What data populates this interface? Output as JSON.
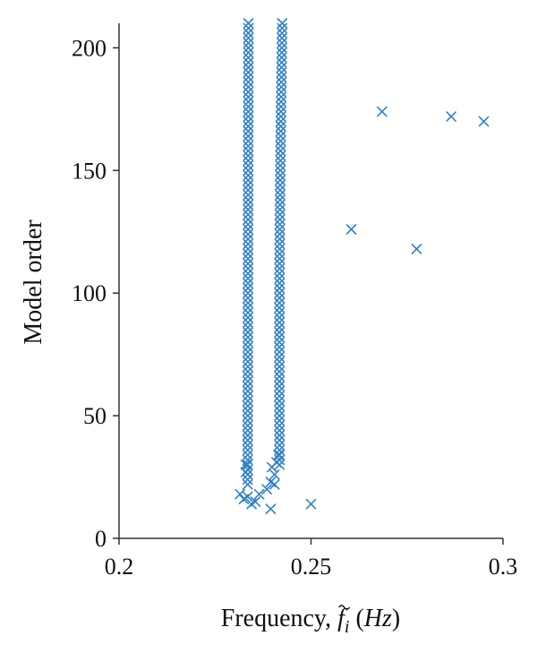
{
  "chart_data": {
    "type": "scatter",
    "title": "",
    "xlabel": "Frequency, f̃ᵢ (Hz)",
    "xlabel_parts": {
      "prefix": "Frequency, ",
      "symbol": "f",
      "subscript": "i",
      "unit": "Hz"
    },
    "ylabel": "Model order",
    "xlim": [
      0.2,
      0.3
    ],
    "ylim": [
      0,
      210
    ],
    "xticks": [
      0.2,
      0.25,
      0.3
    ],
    "xtick_labels": [
      "0.2",
      "0.25",
      "0.3"
    ],
    "yticks": [
      0,
      50,
      100,
      150,
      200
    ],
    "ytick_labels": [
      "0",
      "50",
      "100",
      "150",
      "200"
    ],
    "grid": false,
    "marker": "x",
    "marker_color": "#2f80c8",
    "columns": [
      {
        "y_from": 22,
        "y_to": 210,
        "y_step": 2,
        "x_start": 0.2335,
        "x_end": 0.2337
      },
      {
        "y_from": 30,
        "y_to": 210,
        "y_step": 2,
        "x_start": 0.2418,
        "x_end": 0.2425,
        "x_bulge": 0.0003
      }
    ],
    "points": [
      {
        "x": 0.2315,
        "y": 18
      },
      {
        "x": 0.2325,
        "y": 16
      },
      {
        "x": 0.2335,
        "y": 17
      },
      {
        "x": 0.2345,
        "y": 14
      },
      {
        "x": 0.2355,
        "y": 15
      },
      {
        "x": 0.2365,
        "y": 18
      },
      {
        "x": 0.2385,
        "y": 20
      },
      {
        "x": 0.2395,
        "y": 12
      },
      {
        "x": 0.2395,
        "y": 23
      },
      {
        "x": 0.2405,
        "y": 22
      },
      {
        "x": 0.2405,
        "y": 26
      },
      {
        "x": 0.241,
        "y": 31
      },
      {
        "x": 0.2398,
        "y": 29
      },
      {
        "x": 0.2415,
        "y": 34
      },
      {
        "x": 0.233,
        "y": 30
      },
      {
        "x": 0.233,
        "y": 27
      },
      {
        "x": 0.25,
        "y": 14
      },
      {
        "x": 0.2605,
        "y": 126
      },
      {
        "x": 0.2685,
        "y": 174
      },
      {
        "x": 0.2775,
        "y": 118
      },
      {
        "x": 0.2865,
        "y": 172
      },
      {
        "x": 0.295,
        "y": 170
      }
    ]
  }
}
